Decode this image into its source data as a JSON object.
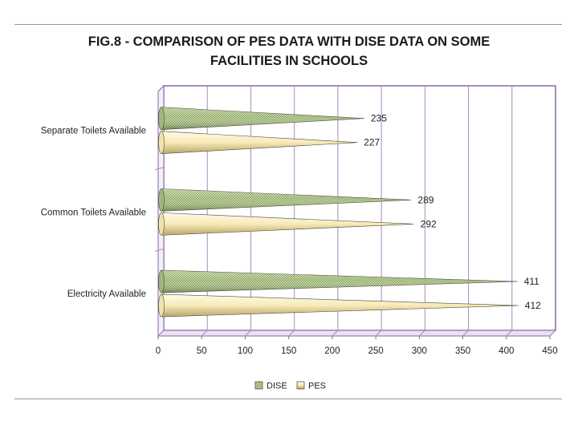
{
  "chart_data": {
    "type": "bar",
    "orientation": "horizontal",
    "shape": "cone",
    "title_line1": "FIG.8 - COMPARISON OF PES DATA WITH DISE DATA ON SOME",
    "title_line2": "FACILITIES IN SCHOOLS",
    "categories": [
      "Separate Toilets Available",
      "Common Toilets Available",
      "Electricity Available"
    ],
    "series": [
      {
        "name": "DISE",
        "values": [
          235,
          289,
          411
        ],
        "color": "#b5cc8e"
      },
      {
        "name": "PES",
        "values": [
          227,
          292,
          412
        ],
        "color": "#f7eab8"
      }
    ],
    "xlim": [
      0,
      450
    ],
    "xticks": [
      "0",
      "50",
      "100",
      "150",
      "200",
      "250",
      "300",
      "350",
      "400",
      "450"
    ],
    "legend_position": "bottom",
    "grid": true
  },
  "colors": {
    "frame": "#8a68a8",
    "grid": "#a58bbf",
    "rule": "#9a9a9a"
  }
}
